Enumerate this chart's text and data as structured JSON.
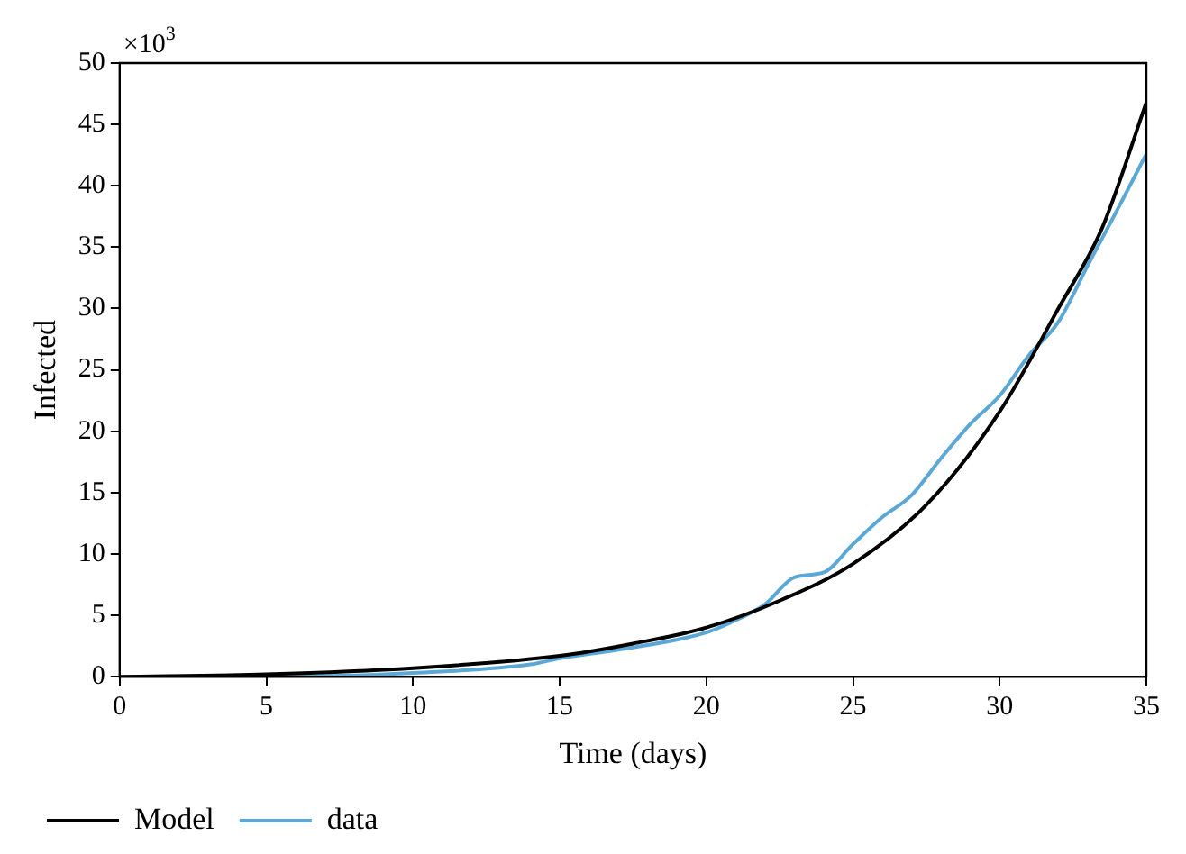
{
  "chart_data": {
    "type": "line",
    "xlabel": "Time (days)",
    "ylabel": "Infected",
    "annotations": [
      "×10$^{3}$"
    ],
    "xlim": [
      0,
      35
    ],
    "xticks": [
      0,
      5,
      10,
      15,
      20,
      25,
      30,
      35
    ],
    "ylim": [
      0,
      50
    ],
    "yticks": [
      0,
      5,
      10,
      15,
      20,
      25,
      30,
      35,
      40,
      45,
      50
    ],
    "grid": false,
    "legend": "bottom",
    "marker": "none",
    "line_style": "solid",
    "series": [
      {
        "name": "Model",
        "color": "#000000",
        "x": [
          0,
          5,
          10,
          15,
          17.5,
          20,
          22.5,
          25,
          27.5,
          30,
          32,
          33.5,
          35
        ],
        "values": [
          0,
          0.2,
          0.7,
          1.7,
          2.7,
          4.0,
          6.2,
          9.2,
          14.0,
          21.6,
          30.0,
          36.6,
          46.8
        ]
      },
      {
        "name": "data",
        "color": "#5ba8d6",
        "x": [
          0,
          5,
          8,
          10,
          14,
          15,
          17,
          20,
          21,
          22,
          23,
          24,
          25,
          26,
          27,
          28,
          29,
          30,
          31,
          32,
          33,
          34,
          35
        ],
        "values": [
          0,
          0,
          0.1,
          0.3,
          1.0,
          1.5,
          2.2,
          3.6,
          4.6,
          5.9,
          8.1,
          8.5,
          10.8,
          13.0,
          14.8,
          17.8,
          20.6,
          22.9,
          26.2,
          28.9,
          33.5,
          38.0,
          42.6
        ]
      }
    ]
  }
}
